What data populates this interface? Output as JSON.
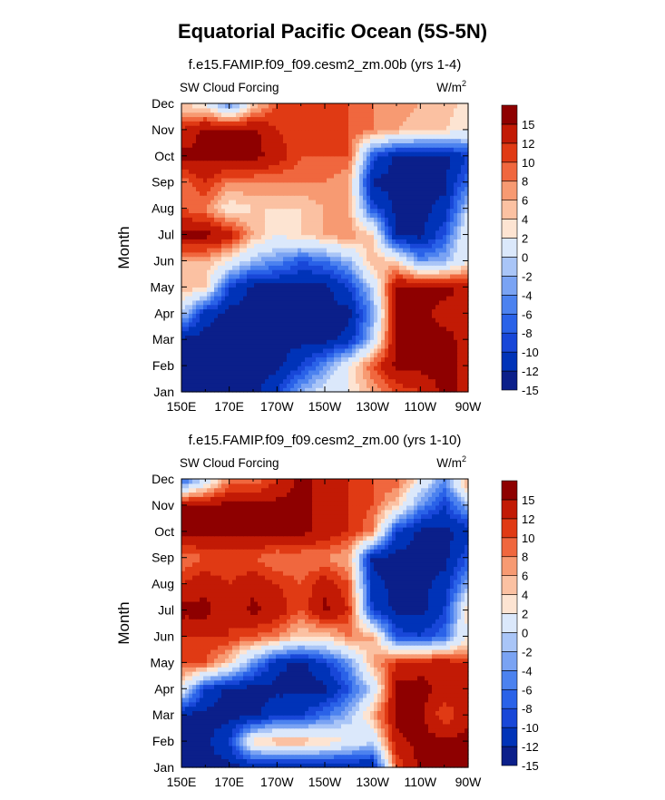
{
  "page": {
    "title": "Equatorial Pacific Ocean (5S-5N)"
  },
  "chart_data": [
    {
      "type": "heatmap",
      "title": "f.e15.FAMIP.f09_f09.cesm2_zm.00b (yrs 1-4)",
      "left_label": "SW Cloud Forcing",
      "units": "W/m",
      "units_sup": "2",
      "ylabel": "Month",
      "x_ticks": [
        "150E",
        "170E",
        "170W",
        "150W",
        "130W",
        "110W",
        "90W"
      ],
      "y_ticks": [
        "Jan",
        "Feb",
        "Mar",
        "Apr",
        "May",
        "Jun",
        "Jul",
        "Aug",
        "Sep",
        "Oct",
        "Nov",
        "Dec"
      ],
      "xlim": [
        150,
        270
      ],
      "ylim": [
        1,
        12
      ],
      "colorbar": {
        "levels": [
          -15,
          -12,
          -10,
          -8,
          -6,
          -4,
          -2,
          0,
          2,
          4,
          6,
          8,
          10,
          12,
          15
        ],
        "labels": [
          "15",
          "12",
          "10",
          "8",
          "6",
          "4",
          "2",
          "0",
          "-2",
          "-4",
          "-6",
          "-8",
          "-10",
          "-12",
          "-15"
        ]
      },
      "x": [
        150,
        160,
        170,
        180,
        190,
        200,
        210,
        220,
        230,
        240,
        250,
        260,
        270
      ],
      "y": [
        1,
        2,
        3,
        4,
        5,
        6,
        7,
        8,
        9,
        10,
        11,
        12
      ],
      "z": [
        [
          -16,
          -16,
          -16,
          -16,
          -12,
          -4,
          0,
          2,
          6,
          10,
          12,
          16,
          14
        ],
        [
          -16,
          -16,
          -16,
          -16,
          -16,
          -12,
          -6,
          2,
          10,
          16,
          16,
          16,
          14
        ],
        [
          -16,
          -16,
          -16,
          -16,
          -16,
          -16,
          -16,
          -14,
          -2,
          16,
          16,
          16,
          14
        ],
        [
          -2,
          -14,
          -16,
          -16,
          -16,
          -16,
          -16,
          -16,
          -6,
          16,
          16,
          14,
          14
        ],
        [
          6,
          4,
          -12,
          -16,
          -16,
          -16,
          -16,
          -12,
          -2,
          16,
          16,
          16,
          14
        ],
        [
          6,
          6,
          2,
          -4,
          -6,
          -10,
          -8,
          -4,
          6,
          4,
          -6,
          -4,
          2
        ],
        [
          16,
          16,
          14,
          6,
          2,
          4,
          6,
          8,
          4,
          -16,
          -16,
          -10,
          2
        ],
        [
          10,
          8,
          2,
          4,
          4,
          4,
          6,
          6,
          -10,
          -16,
          -16,
          -14,
          -2
        ],
        [
          8,
          12,
          8,
          8,
          8,
          8,
          8,
          6,
          -16,
          -16,
          -16,
          -16,
          -8
        ],
        [
          16,
          16,
          16,
          16,
          14,
          10,
          10,
          10,
          -10,
          -16,
          -16,
          -16,
          -12
        ],
        [
          12,
          16,
          16,
          16,
          12,
          10,
          10,
          10,
          8,
          6,
          4,
          4,
          2
        ],
        [
          4,
          2,
          -8,
          4,
          10,
          10,
          10,
          10,
          8,
          8,
          6,
          6,
          2
        ]
      ]
    },
    {
      "type": "heatmap",
      "title": "f.e15.FAMIP.f09_f09.cesm2_zm.00 (yrs 1-10)",
      "left_label": "SW Cloud Forcing",
      "units": "W/m",
      "units_sup": "2",
      "ylabel": "Month",
      "x_ticks": [
        "150E",
        "170E",
        "170W",
        "150W",
        "130W",
        "110W",
        "90W"
      ],
      "y_ticks": [
        "Jan",
        "Feb",
        "Mar",
        "Apr",
        "May",
        "Jun",
        "Jul",
        "Aug",
        "Sep",
        "Oct",
        "Nov",
        "Dec"
      ],
      "xlim": [
        150,
        270
      ],
      "ylim": [
        1,
        12
      ],
      "colorbar": {
        "levels": [
          -15,
          -12,
          -10,
          -8,
          -6,
          -4,
          -2,
          0,
          2,
          4,
          6,
          8,
          10,
          12,
          15
        ],
        "labels": [
          "15",
          "12",
          "10",
          "8",
          "6",
          "4",
          "2",
          "0",
          "-2",
          "-4",
          "-6",
          "-8",
          "-10",
          "-12",
          "-15"
        ]
      },
      "x": [
        150,
        160,
        170,
        180,
        190,
        200,
        210,
        220,
        230,
        240,
        250,
        260,
        270
      ],
      "y": [
        1,
        2,
        3,
        4,
        5,
        6,
        7,
        8,
        9,
        10,
        11,
        12
      ],
      "z": [
        [
          -16,
          -16,
          -16,
          -16,
          -16,
          -16,
          -16,
          -16,
          -16,
          10,
          16,
          16,
          16
        ],
        [
          -16,
          -16,
          -12,
          4,
          6,
          6,
          4,
          2,
          -2,
          14,
          16,
          16,
          16
        ],
        [
          -16,
          -16,
          -16,
          -16,
          -12,
          -12,
          -8,
          -4,
          6,
          16,
          16,
          10,
          14
        ],
        [
          2,
          -12,
          -16,
          -16,
          -16,
          -16,
          -16,
          -10,
          -2,
          16,
          16,
          14,
          14
        ],
        [
          10,
          10,
          4,
          -6,
          -14,
          -16,
          -12,
          -6,
          6,
          12,
          14,
          14,
          12
        ],
        [
          12,
          12,
          12,
          10,
          8,
          4,
          4,
          8,
          6,
          -10,
          -12,
          -8,
          2
        ],
        [
          16,
          16,
          12,
          16,
          14,
          10,
          16,
          12,
          -12,
          -16,
          -16,
          -12,
          4
        ],
        [
          12,
          14,
          12,
          14,
          12,
          10,
          14,
          10,
          -14,
          -16,
          -16,
          -14,
          -4
        ],
        [
          8,
          10,
          10,
          10,
          8,
          8,
          8,
          6,
          -16,
          -16,
          -16,
          -16,
          -10
        ],
        [
          16,
          16,
          16,
          16,
          16,
          16,
          14,
          12,
          8,
          -12,
          -16,
          -16,
          -14
        ],
        [
          16,
          16,
          16,
          16,
          16,
          16,
          14,
          12,
          10,
          4,
          -6,
          -12,
          -4
        ],
        [
          -10,
          -2,
          8,
          8,
          12,
          16,
          14,
          12,
          10,
          10,
          2,
          -6,
          8
        ]
      ]
    }
  ]
}
